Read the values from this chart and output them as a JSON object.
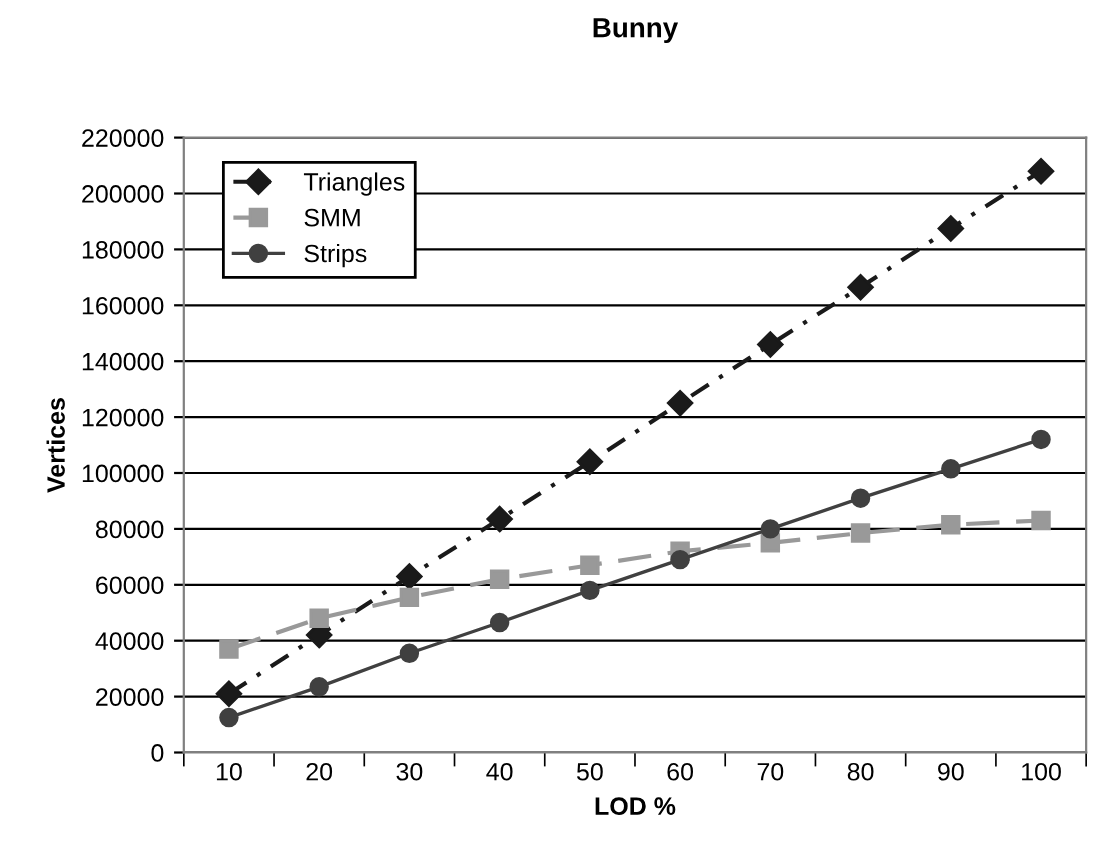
{
  "chart_data": {
    "type": "line",
    "title": "Bunny",
    "xlabel": "LOD %",
    "ylabel": "Vertices",
    "categories": [
      "10",
      "20",
      "30",
      "40",
      "50",
      "60",
      "70",
      "80",
      "90",
      "100"
    ],
    "ylim": [
      0,
      220000
    ],
    "yticks": [
      0,
      20000,
      40000,
      60000,
      80000,
      100000,
      120000,
      140000,
      160000,
      180000,
      200000,
      220000
    ],
    "grid": "y",
    "legend": "top left",
    "series": [
      {
        "name": "Triangles",
        "color": "#1a1a1a",
        "marker": "diamond",
        "line_style": "dashed",
        "values": [
          21000,
          42000,
          63000,
          83500,
          104000,
          125000,
          146000,
          166500,
          187500,
          208000
        ]
      },
      {
        "name": "SMM",
        "color": "#999999",
        "marker": "square",
        "line_style": "dashed",
        "values": [
          37000,
          48000,
          55500,
          62000,
          67000,
          72000,
          75000,
          78500,
          81500,
          83000
        ]
      },
      {
        "name": "Strips",
        "color": "#404040",
        "marker": "circle",
        "line_style": "solid",
        "values": [
          12500,
          23500,
          35500,
          46500,
          58000,
          69000,
          80000,
          91000,
          101500,
          112000
        ]
      }
    ]
  }
}
